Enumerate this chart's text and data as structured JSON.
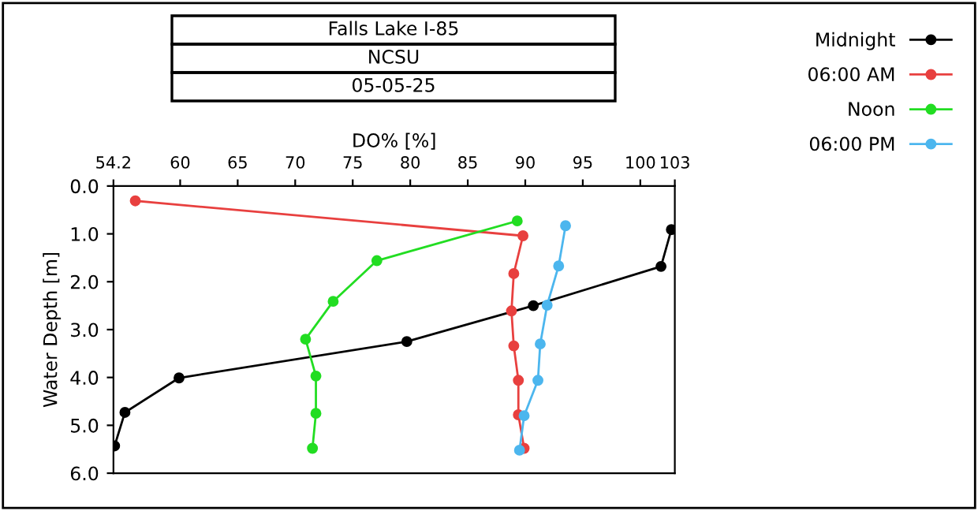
{
  "chart_data": {
    "type": "line",
    "title": "Falls Lake I-85",
    "subtitle": "NCSU",
    "annotations": [
      "05-05-25"
    ],
    "xlabel": "DO% [%]",
    "ylabel": "Water Depth [m]",
    "xlim": [
      54.2,
      103
    ],
    "xticks": [
      54.2,
      60,
      65,
      70,
      75,
      80,
      85,
      90,
      95,
      100,
      103
    ],
    "ylim": [
      6,
      0
    ],
    "yticks": [
      {
        "value": 0,
        "label": "0.0"
      },
      {
        "value": 1,
        "label": "1.0"
      },
      {
        "value": 2,
        "label": "2.0"
      },
      {
        "value": 3,
        "label": "3.0"
      },
      {
        "value": 4,
        "label": "4.0"
      },
      {
        "value": 5,
        "label": "5.0"
      },
      {
        "value": 6,
        "label": "6.0"
      }
    ],
    "marker": "circle",
    "line_style": "solid",
    "grid": false,
    "legend": "top right",
    "series": [
      {
        "name": "Midnight",
        "color": "#000000",
        "x": [
          102.7,
          101.8,
          90.7,
          79.7,
          59.9,
          55.2,
          54.3
        ],
        "values": [
          0.91,
          1.68,
          2.5,
          3.25,
          4.01,
          4.73,
          5.43
        ]
      },
      {
        "name": "06:00 AM",
        "color": "#e8403f",
        "x": [
          56.1,
          89.8,
          89.0,
          88.8,
          89.0,
          89.4,
          89.4,
          89.9
        ],
        "values": [
          0.31,
          1.04,
          1.83,
          2.61,
          3.34,
          4.06,
          4.78,
          5.48
        ]
      },
      {
        "name": "Noon",
        "color": "#22dd22",
        "x": [
          89.3,
          77.1,
          73.3,
          70.9,
          71.8,
          71.8,
          71.5
        ],
        "values": [
          0.73,
          1.56,
          2.41,
          3.2,
          3.97,
          4.75,
          5.48
        ]
      },
      {
        "name": "06:00 PM",
        "color": "#4cb6ee",
        "x": [
          93.5,
          92.9,
          91.9,
          91.3,
          91.1,
          89.9,
          89.5
        ],
        "values": [
          0.83,
          1.67,
          2.49,
          3.3,
          4.06,
          4.8,
          5.52
        ]
      }
    ]
  }
}
